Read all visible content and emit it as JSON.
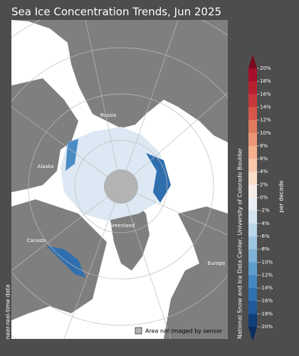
{
  "title": "Sea Ice Concentration Trends, Jun 2025",
  "map": {
    "labels": [
      "Russia",
      "Alaska",
      "Greenland",
      "Canada",
      "Europe"
    ]
  },
  "legend": {
    "label": "Area not imaged by sensor"
  },
  "credit": "National Snow and Ice Data Center, University of Colorado Boulder",
  "footnote": "near-real-time data",
  "colorbar": {
    "unit": "per decade",
    "ticks": [
      {
        "value": 20,
        "label": "20%"
      },
      {
        "value": 18,
        "label": "18%"
      },
      {
        "value": 16,
        "label": "16%"
      },
      {
        "value": 14,
        "label": "14%"
      },
      {
        "value": 12,
        "label": "12%"
      },
      {
        "value": 10,
        "label": "10%"
      },
      {
        "value": 8,
        "label": "8%"
      },
      {
        "value": 6,
        "label": "6%"
      },
      {
        "value": 4,
        "label": "4%"
      },
      {
        "value": 2,
        "label": "2%"
      },
      {
        "value": 0,
        "label": "0%"
      },
      {
        "value": -2,
        "label": "-2%"
      },
      {
        "value": -4,
        "label": "-4%"
      },
      {
        "value": -6,
        "label": "-6%"
      },
      {
        "value": -8,
        "label": "-8%"
      },
      {
        "value": -10,
        "label": "-10%"
      },
      {
        "value": -12,
        "label": "-12%"
      },
      {
        "value": -14,
        "label": "-14%"
      },
      {
        "value": -16,
        "label": "-16%"
      },
      {
        "value": -18,
        "label": "-18%"
      },
      {
        "value": -20,
        "label": "-20%"
      }
    ],
    "colors": [
      "#a50f2a",
      "#b8202f",
      "#c9383c",
      "#d6574a",
      "#e07a5f",
      "#eb9677",
      "#f4b08f",
      "#f8c8ad",
      "#fbddca",
      "#f6ece6",
      "#e8eef4",
      "#d3e3ef",
      "#bcd6ea",
      "#9fc6e0",
      "#7fb2d6",
      "#5f9dcc",
      "#4588c1",
      "#3071b0",
      "#205a9a",
      "#123f78"
    ],
    "over_color": "#7a0a1e",
    "under_color": "#0a2c5e"
  }
}
